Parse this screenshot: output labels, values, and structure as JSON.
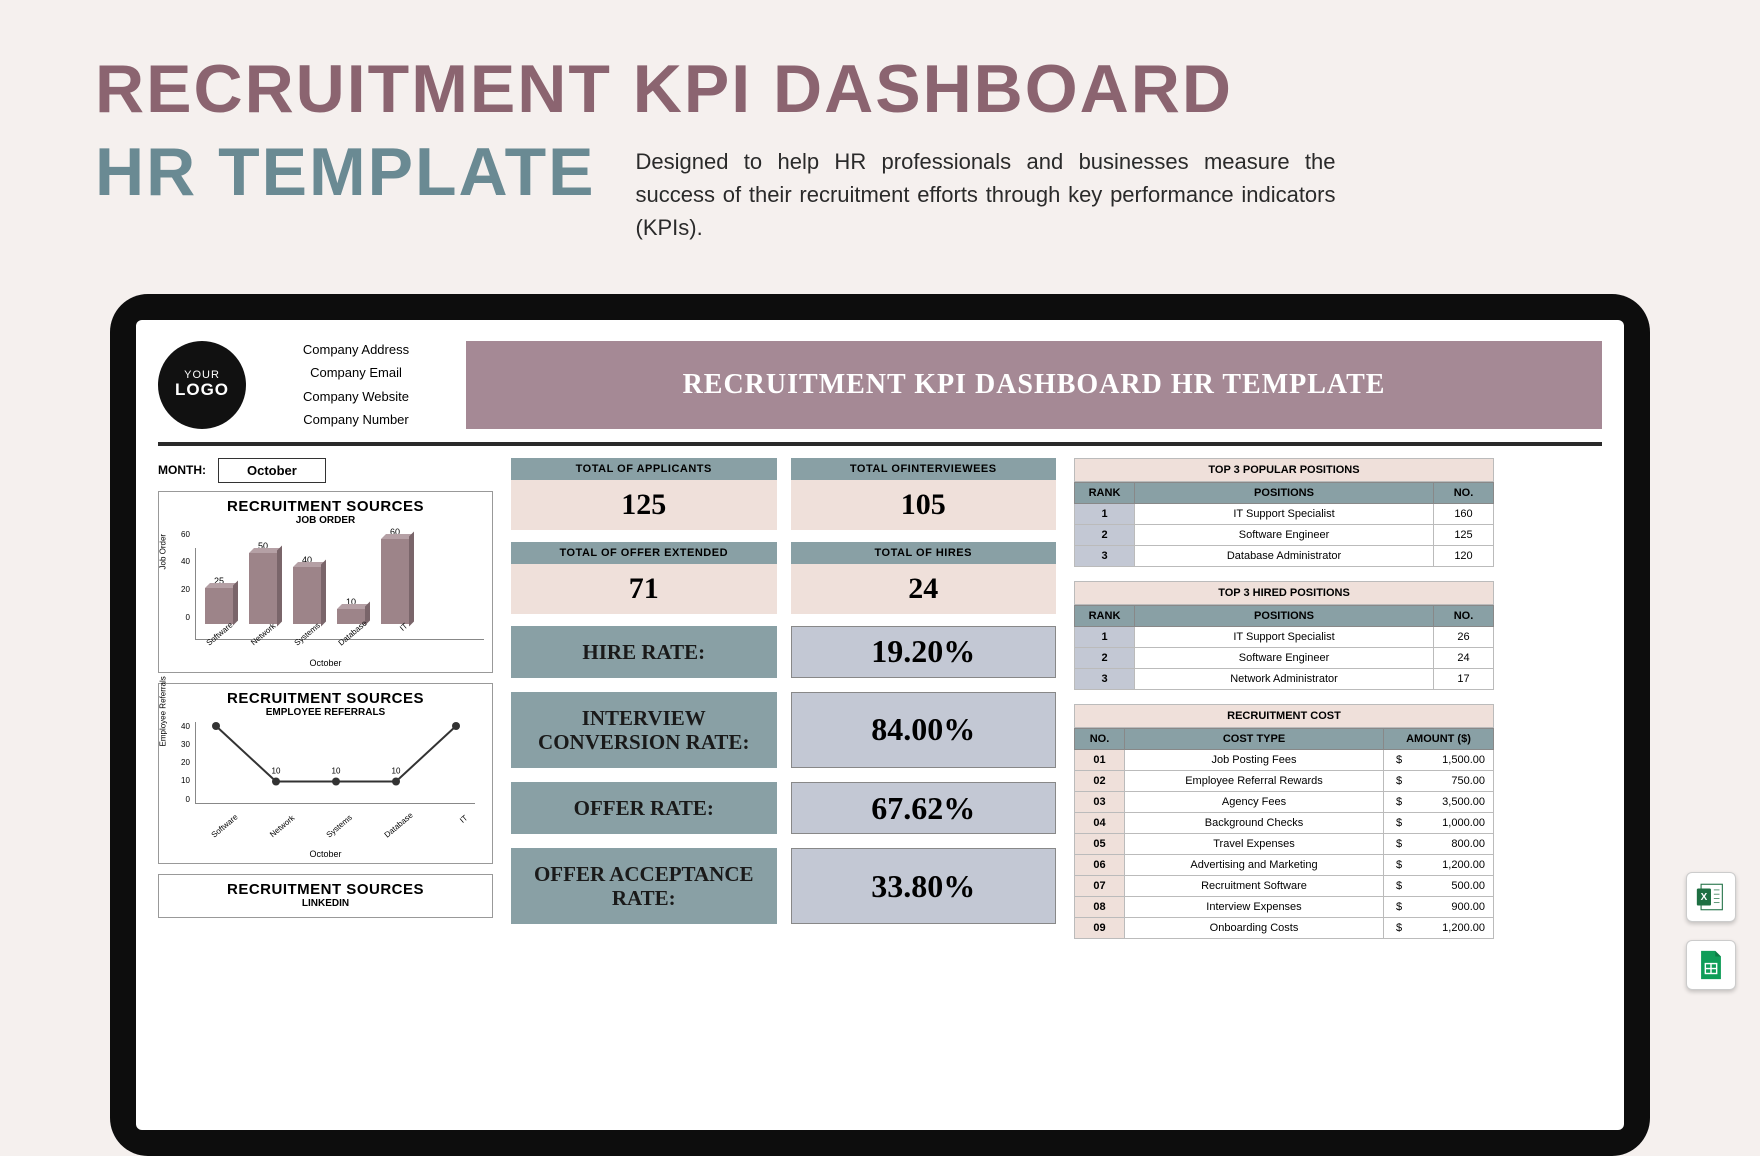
{
  "header": {
    "title_line1": "RECRUITMENT KPI DASHBOARD",
    "title_line2": "HR TEMPLATE",
    "description": "Designed to help HR professionals and businesses measure the success of their recruitment efforts through key performance indicators (KPIs)."
  },
  "dashboard": {
    "logo_top": "YOUR",
    "logo_bottom": "LOGO",
    "company": [
      "Company Address",
      "Company Email",
      "Company Website",
      "Company Number"
    ],
    "banner": "RECRUITMENT KPI DASHBOARD HR TEMPLATE",
    "month_label": "MONTH:",
    "month_value": "October"
  },
  "charts": {
    "bar_title": "RECRUITMENT SOURCES",
    "bar_sub": "JOB ORDER",
    "bar_ylabel": "Job Order",
    "bar_categories": [
      "Software",
      "Network",
      "Systems",
      "Database",
      "IT"
    ],
    "bar_values": [
      25,
      50,
      40,
      10,
      60
    ],
    "bar_yticks": [
      60,
      40,
      20,
      0
    ],
    "bar_month": "October",
    "bar_color": "#9d8489",
    "line_title": "RECRUITMENT SOURCES",
    "line_sub": "EMPLOYEE REFERRALS",
    "line_ylabel": "Employee Referrals",
    "line_categories": [
      "Software",
      "Network",
      "Systems",
      "Database",
      "IT"
    ],
    "line_values": [
      40,
      10,
      10,
      10,
      40
    ],
    "line_yticks": [
      40,
      30,
      20,
      10,
      0
    ],
    "line_month": "October",
    "line3_title": "RECRUITMENT SOURCES",
    "line3_sub": "LINKEDIN"
  },
  "kpis": {
    "applicants_label": "TOTAL OF APPLICANTS",
    "applicants_value": "125",
    "interviewees_label": "TOTAL OFINTERVIEWEES",
    "interviewees_value": "105",
    "offers_label": "TOTAL OF OFFER EXTENDED",
    "offers_value": "71",
    "hires_label": "TOTAL OF HIRES",
    "hires_value": "24"
  },
  "rates": {
    "hire_label": "HIRE RATE:",
    "hire_value": "19.20%",
    "icr_label": "INTERVIEW CONVERSION RATE:",
    "icr_value": "84.00%",
    "offer_label": "OFFER RATE:",
    "offer_value": "67.62%",
    "oar_label": "OFFER ACCEPTANCE RATE:",
    "oar_value": "33.80%"
  },
  "tables": {
    "popular_title": "TOP 3 POPULAR POSITIONS",
    "hired_title": "TOP 3 HIRED POSITIONS",
    "cols": {
      "rank": "RANK",
      "pos": "POSITIONS",
      "no": "NO."
    },
    "popular_rows": [
      {
        "rank": "1",
        "pos": "IT Support Specialist",
        "no": "160"
      },
      {
        "rank": "2",
        "pos": "Software Engineer",
        "no": "125"
      },
      {
        "rank": "3",
        "pos": "Database Administrator",
        "no": "120"
      }
    ],
    "hired_rows": [
      {
        "rank": "1",
        "pos": "IT Support Specialist",
        "no": "26"
      },
      {
        "rank": "2",
        "pos": "Software Engineer",
        "no": "24"
      },
      {
        "rank": "3",
        "pos": "Network Administrator",
        "no": "17"
      }
    ],
    "cost_title": "RECRUITMENT COST",
    "cost_cols": {
      "no": "NO.",
      "type": "COST TYPE",
      "amt": "AMOUNT ($)"
    },
    "cost_rows": [
      {
        "no": "01",
        "type": "Job Posting Fees",
        "amt": "1,500.00"
      },
      {
        "no": "02",
        "type": "Employee Referral Rewards",
        "amt": "750.00"
      },
      {
        "no": "03",
        "type": "Agency Fees",
        "amt": "3,500.00"
      },
      {
        "no": "04",
        "type": "Background Checks",
        "amt": "1,000.00"
      },
      {
        "no": "05",
        "type": "Travel Expenses",
        "amt": "800.00"
      },
      {
        "no": "06",
        "type": "Advertising and Marketing",
        "amt": "1,200.00"
      },
      {
        "no": "07",
        "type": "Recruitment Software",
        "amt": "500.00"
      },
      {
        "no": "08",
        "type": "Interview Expenses",
        "amt": "900.00"
      },
      {
        "no": "09",
        "type": "Onboarding Costs",
        "amt": "1,200.00"
      }
    ]
  }
}
